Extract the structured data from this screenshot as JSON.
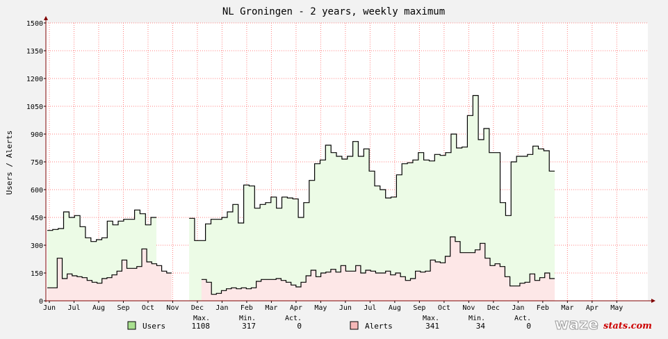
{
  "chart_data": {
    "type": "area",
    "title": "NL Groningen - 2 years, weekly maximum",
    "ylabel": "Users / Alerts",
    "xlabel": "",
    "ylim": [
      0,
      1500
    ],
    "yticks": [
      0,
      150,
      300,
      450,
      600,
      750,
      900,
      1050,
      1200,
      1350,
      1500
    ],
    "xticks": [
      "Jun",
      "Jul",
      "Aug",
      "Sep",
      "Oct",
      "Nov",
      "Dec",
      "Jan",
      "Feb",
      "Mar",
      "Apr",
      "May",
      "Jun",
      "Jul",
      "Aug",
      "Sep",
      "Oct",
      "Nov",
      "Dec",
      "Jan",
      "Feb",
      "Mar",
      "Apr",
      "May"
    ],
    "grid": true,
    "colors": {
      "users_fill": "#ecfbe6",
      "alerts_fill": "#fde7e7",
      "line": "#000000",
      "grid": "#ff7f7f",
      "axis": "#800000"
    },
    "series": [
      {
        "name": "Users",
        "swatch": "#a9e08f",
        "values": [
          380,
          385,
          390,
          480,
          450,
          460,
          400,
          340,
          320,
          330,
          340,
          430,
          410,
          430,
          440,
          440,
          490,
          470,
          410,
          450,
          null,
          null,
          null,
          null,
          null,
          null,
          445,
          325,
          325,
          415,
          440,
          440,
          450,
          480,
          520,
          420,
          625,
          620,
          500,
          520,
          530,
          560,
          500,
          560,
          555,
          550,
          450,
          530,
          650,
          740,
          760,
          840,
          800,
          780,
          765,
          780,
          860,
          780,
          820,
          700,
          620,
          600,
          555,
          560,
          680,
          740,
          745,
          760,
          800,
          760,
          755,
          790,
          785,
          800,
          900,
          825,
          830,
          1000,
          1108,
          870,
          930,
          800,
          800,
          530,
          460,
          750,
          780,
          780,
          790,
          835,
          820,
          810,
          700
        ],
        "max": "1108",
        "min": "317",
        "act": "0"
      },
      {
        "name": "Alerts",
        "swatch": "#f5b8b8",
        "values": [
          70,
          70,
          230,
          120,
          145,
          135,
          130,
          125,
          110,
          100,
          95,
          120,
          125,
          140,
          160,
          220,
          175,
          175,
          185,
          280,
          210,
          200,
          190,
          160,
          150,
          null,
          null,
          null,
          null,
          null,
          null,
          115,
          100,
          35,
          40,
          55,
          65,
          70,
          65,
          70,
          65,
          70,
          105,
          115,
          115,
          115,
          120,
          110,
          100,
          85,
          75,
          100,
          135,
          165,
          130,
          150,
          155,
          170,
          155,
          190,
          160,
          160,
          190,
          150,
          165,
          160,
          150,
          150,
          160,
          140,
          150,
          130,
          110,
          120,
          160,
          155,
          160,
          220,
          210,
          205,
          240,
          345,
          320,
          260,
          260,
          260,
          275,
          310,
          230,
          190,
          200,
          185,
          130,
          80,
          80,
          95,
          100,
          145,
          110,
          125,
          150,
          120
        ],
        "max": "341",
        "min": "34",
        "act": "0"
      }
    ]
  },
  "legend": {
    "header_max": "Max.",
    "header_min": "Min.",
    "header_act": "Act."
  },
  "logo": {
    "text": "waze",
    "suffix": "stats.com"
  }
}
